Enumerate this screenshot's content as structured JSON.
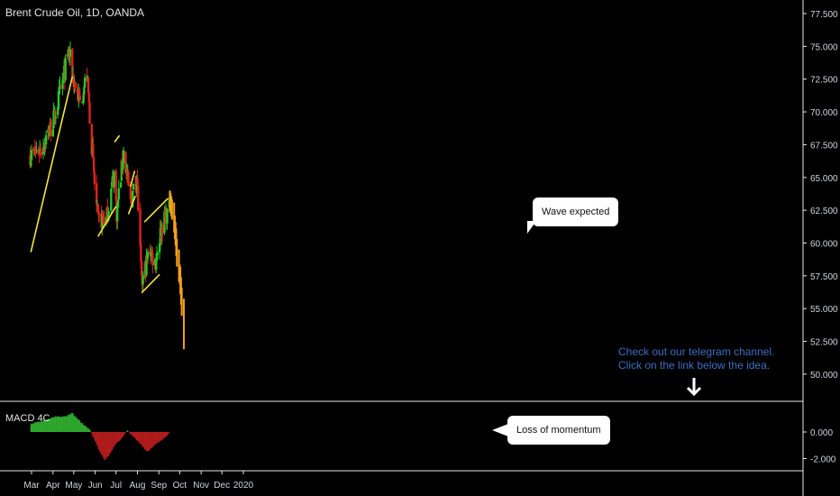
{
  "header": {
    "title": "Brent Crude Oil, 1D, OANDA"
  },
  "macd": {
    "title": "MACD 4C"
  },
  "annotations": {
    "wave_expected": "Wave expected",
    "loss_of_momentum": "Loss of momentum",
    "telegram_line1": "Check out our telegram channel.",
    "telegram_line2": "Click on the link below the idea."
  },
  "colors": {
    "up": "#26c926",
    "down": "#e02020",
    "projection": "#f5a018",
    "trendline": "#f5e63c",
    "macd_pos": "#2ea82e",
    "macd_neg": "#b01c1c",
    "grid": "#e6e6e6",
    "telegram": "#3d6fc2",
    "background": "#000000"
  },
  "icons": {
    "arrow": "down-arrow-icon"
  },
  "chart_data": [
    {
      "type": "candlestick",
      "title": "Brent Crude Oil, 1D, OANDA",
      "x_tick_labels": [
        "Mar",
        "Apr",
        "May",
        "Jun",
        "Jul",
        "Aug",
        "Sep",
        "Oct",
        "Nov",
        "Dec",
        "2020"
      ],
      "y_tick_labels": [
        "77.500",
        "75.000",
        "72.500",
        "70.000",
        "67.500",
        "65.000",
        "62.500",
        "60.000",
        "57.500",
        "55.000",
        "52.500",
        "50.000"
      ],
      "ylim": [
        48.5,
        78.0
      ],
      "price_path": [
        [
          "2019-03-01",
          66.7
        ],
        [
          "2019-03-15",
          67.2
        ],
        [
          "2019-04-01",
          69.2
        ],
        [
          "2019-04-12",
          71.6
        ],
        [
          "2019-04-24",
          74.6
        ],
        [
          "2019-05-01",
          72.4
        ],
        [
          "2019-05-10",
          70.7
        ],
        [
          "2019-05-20",
          72.8
        ],
        [
          "2019-05-31",
          64.5
        ],
        [
          "2019-06-05",
          61.6
        ],
        [
          "2019-06-12",
          61.9
        ],
        [
          "2019-06-17",
          61.7
        ],
        [
          "2019-06-28",
          65.3
        ],
        [
          "2019-07-02",
          62.3
        ],
        [
          "2019-07-12",
          67.0
        ],
        [
          "2019-07-22",
          63.0
        ],
        [
          "2019-07-31",
          65.2
        ],
        [
          "2019-08-07",
          56.8
        ],
        [
          "2019-08-19",
          59.6
        ],
        [
          "2019-08-26",
          58.4
        ],
        [
          "2019-09-05",
          61.3
        ],
        [
          "2019-09-16",
          62.7
        ]
      ],
      "projection_path": [
        [
          "2019-09-17",
          63.0
        ],
        [
          "2019-09-22",
          61.8
        ],
        [
          "2019-09-25",
          60.3
        ],
        [
          "2019-09-28",
          57.9
        ],
        [
          "2019-10-01",
          57.4
        ],
        [
          "2019-10-03",
          55.8
        ],
        [
          "2019-10-07",
          52.4
        ]
      ],
      "trendlines": [
        {
          "points": [
            [
              "2019-02-28",
              59.3
            ],
            [
              "2019-04-29",
              72.7
            ]
          ]
        },
        {
          "points": [
            [
              "2019-06-05",
              60.5
            ],
            [
              "2019-07-01",
              62.8
            ]
          ]
        },
        {
          "points": [
            [
              "2019-06-29",
              67.7
            ],
            [
              "2019-07-06",
              68.2
            ]
          ]
        },
        {
          "points": [
            [
              "2019-07-19",
              62.2
            ],
            [
              "2019-07-29",
              63.6
            ]
          ]
        },
        {
          "points": [
            [
              "2019-07-22",
              64.3
            ],
            [
              "2019-07-28",
              65.5
            ]
          ]
        },
        {
          "points": [
            [
              "2019-08-07",
              56.2
            ],
            [
              "2019-09-02",
              57.6
            ]
          ]
        },
        {
          "points": [
            [
              "2019-08-11",
              61.6
            ],
            [
              "2019-09-14",
              63.4
            ]
          ]
        }
      ],
      "annotations": [
        "Wave expected",
        "Check out our telegram channel.",
        "Click on the link below the idea."
      ]
    },
    {
      "type": "bar",
      "title": "MACD 4C",
      "y_tick_labels": [
        "0.000",
        "-2.000"
      ],
      "ylim": [
        -2.6,
        1.9
      ],
      "path": [
        [
          "2019-02-28",
          0.6
        ],
        [
          "2019-03-15",
          0.8
        ],
        [
          "2019-04-01",
          1.1
        ],
        [
          "2019-04-20",
          1.2
        ],
        [
          "2019-04-29",
          1.4
        ],
        [
          "2019-05-10",
          0.8
        ],
        [
          "2019-05-25",
          0.1
        ],
        [
          "2019-05-31",
          -0.6
        ],
        [
          "2019-06-10",
          -1.7
        ],
        [
          "2019-06-15",
          -2.1
        ],
        [
          "2019-06-20",
          -1.8
        ],
        [
          "2019-07-01",
          -0.9
        ],
        [
          "2019-07-10",
          -0.4
        ],
        [
          "2019-07-17",
          0.1
        ],
        [
          "2019-07-25",
          -0.3
        ],
        [
          "2019-08-05",
          -0.9
        ],
        [
          "2019-08-15",
          -1.5
        ],
        [
          "2019-08-26",
          -1.0
        ],
        [
          "2019-09-05",
          -0.6
        ],
        [
          "2019-09-16",
          -0.1
        ]
      ],
      "annotations": [
        "Loss of momentum"
      ]
    }
  ]
}
